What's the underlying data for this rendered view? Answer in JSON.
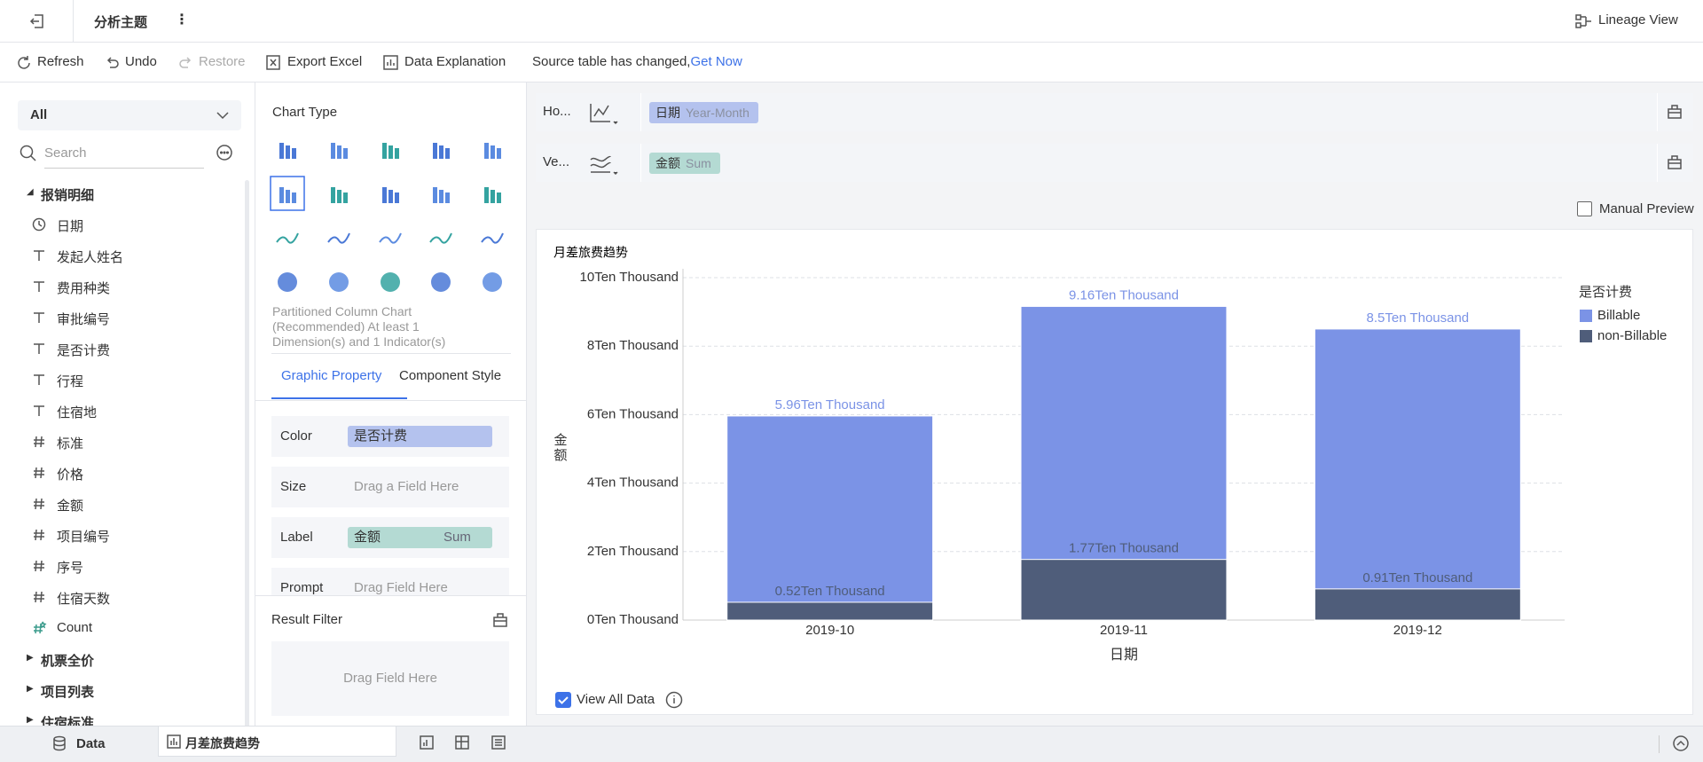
{
  "header": {
    "title": "分析主题",
    "lineage": "Lineage View"
  },
  "toolbar": {
    "refresh": "Refresh",
    "undo": "Undo",
    "restore": "Restore",
    "export": "Export Excel",
    "explain": "Data Explanation",
    "notice": "Source table has changed,",
    "notice_link": "Get Now"
  },
  "sidebar": {
    "filter": "All",
    "search_placeholder": "Search",
    "groups": [
      {
        "name": "报销明细",
        "fields": [
          {
            "name": "日期",
            "kind": "date"
          },
          {
            "name": "发起人姓名",
            "kind": "text"
          },
          {
            "name": "费用种类",
            "kind": "text"
          },
          {
            "name": "审批编号",
            "kind": "text"
          },
          {
            "name": "是否计费",
            "kind": "text"
          },
          {
            "name": "行程",
            "kind": "text"
          },
          {
            "name": "住宿地",
            "kind": "text"
          },
          {
            "name": "标准",
            "kind": "number"
          },
          {
            "name": "价格",
            "kind": "number"
          },
          {
            "name": "金额",
            "kind": "number"
          },
          {
            "name": "项目编号",
            "kind": "number"
          },
          {
            "name": "序号",
            "kind": "number"
          },
          {
            "name": "住宿天数",
            "kind": "number"
          },
          {
            "name": "Count",
            "kind": "count"
          }
        ]
      },
      {
        "name": "机票全价",
        "fields": []
      },
      {
        "name": "项目列表",
        "fields": []
      },
      {
        "name": "住宿标准",
        "fields": []
      }
    ]
  },
  "chart_panel": {
    "title": "Chart Type",
    "description": "Partitioned Column Chart (Recommended) At least 1 Dimension(s) and 1 Indicator(s)",
    "tabs": [
      "Graphic Property",
      "Component Style"
    ],
    "properties": [
      {
        "label": "Color",
        "field": "是否计费"
      },
      {
        "label": "Size",
        "placeholder": "Drag a Field Here"
      },
      {
        "label": "Label",
        "field": "金额",
        "agg": "Sum"
      },
      {
        "label": "Prompt",
        "placeholder": "Drag Field Here"
      }
    ],
    "result_filter": "Result Filter",
    "result_filter_drop": "Drag Field Here"
  },
  "shelves": [
    {
      "label": "Ho...",
      "field": "日期",
      "agg": "Year-Month"
    },
    {
      "label": "Ve...",
      "field": "金额",
      "agg": "Sum"
    }
  ],
  "manual_preview": "Manual Preview",
  "chart_data": {
    "type": "bar",
    "title": "月差旅费趋势",
    "x_label": "日期",
    "y_label": "金额",
    "legend_title": "是否计费",
    "legend": "right",
    "categories": [
      "2019-10",
      "2019-11",
      "2019-12"
    ],
    "series": [
      {
        "name": "Billable",
        "color": "#7b93e6",
        "values": [
          5.96,
          9.16,
          8.5
        ],
        "value_labels": [
          "5.96Ten Thousand",
          "9.16Ten Thousand",
          "8.5Ten Thousand"
        ]
      },
      {
        "name": "non-Billable",
        "color": "#4f5d7a",
        "values": [
          0.52,
          1.77,
          0.91
        ],
        "value_labels": [
          "0.52Ten Thousand",
          "1.77Ten Thousand",
          "0.91Ten Thousand"
        ]
      }
    ],
    "ylim": [
      0,
      10
    ],
    "yticks": [
      {
        "value": 0,
        "label": "0Ten Thousand"
      },
      {
        "value": 2,
        "label": "2Ten Thousand"
      },
      {
        "value": 4,
        "label": "4Ten Thousand"
      },
      {
        "value": 6,
        "label": "6Ten Thousand"
      },
      {
        "value": 8,
        "label": "8Ten Thousand"
      },
      {
        "value": 10,
        "label": "10Ten Thousand"
      }
    ],
    "grid": true
  },
  "view_all": "View All Data",
  "bottom": {
    "data_tab": "Data",
    "sheet_tab": "月差旅费趋势"
  }
}
